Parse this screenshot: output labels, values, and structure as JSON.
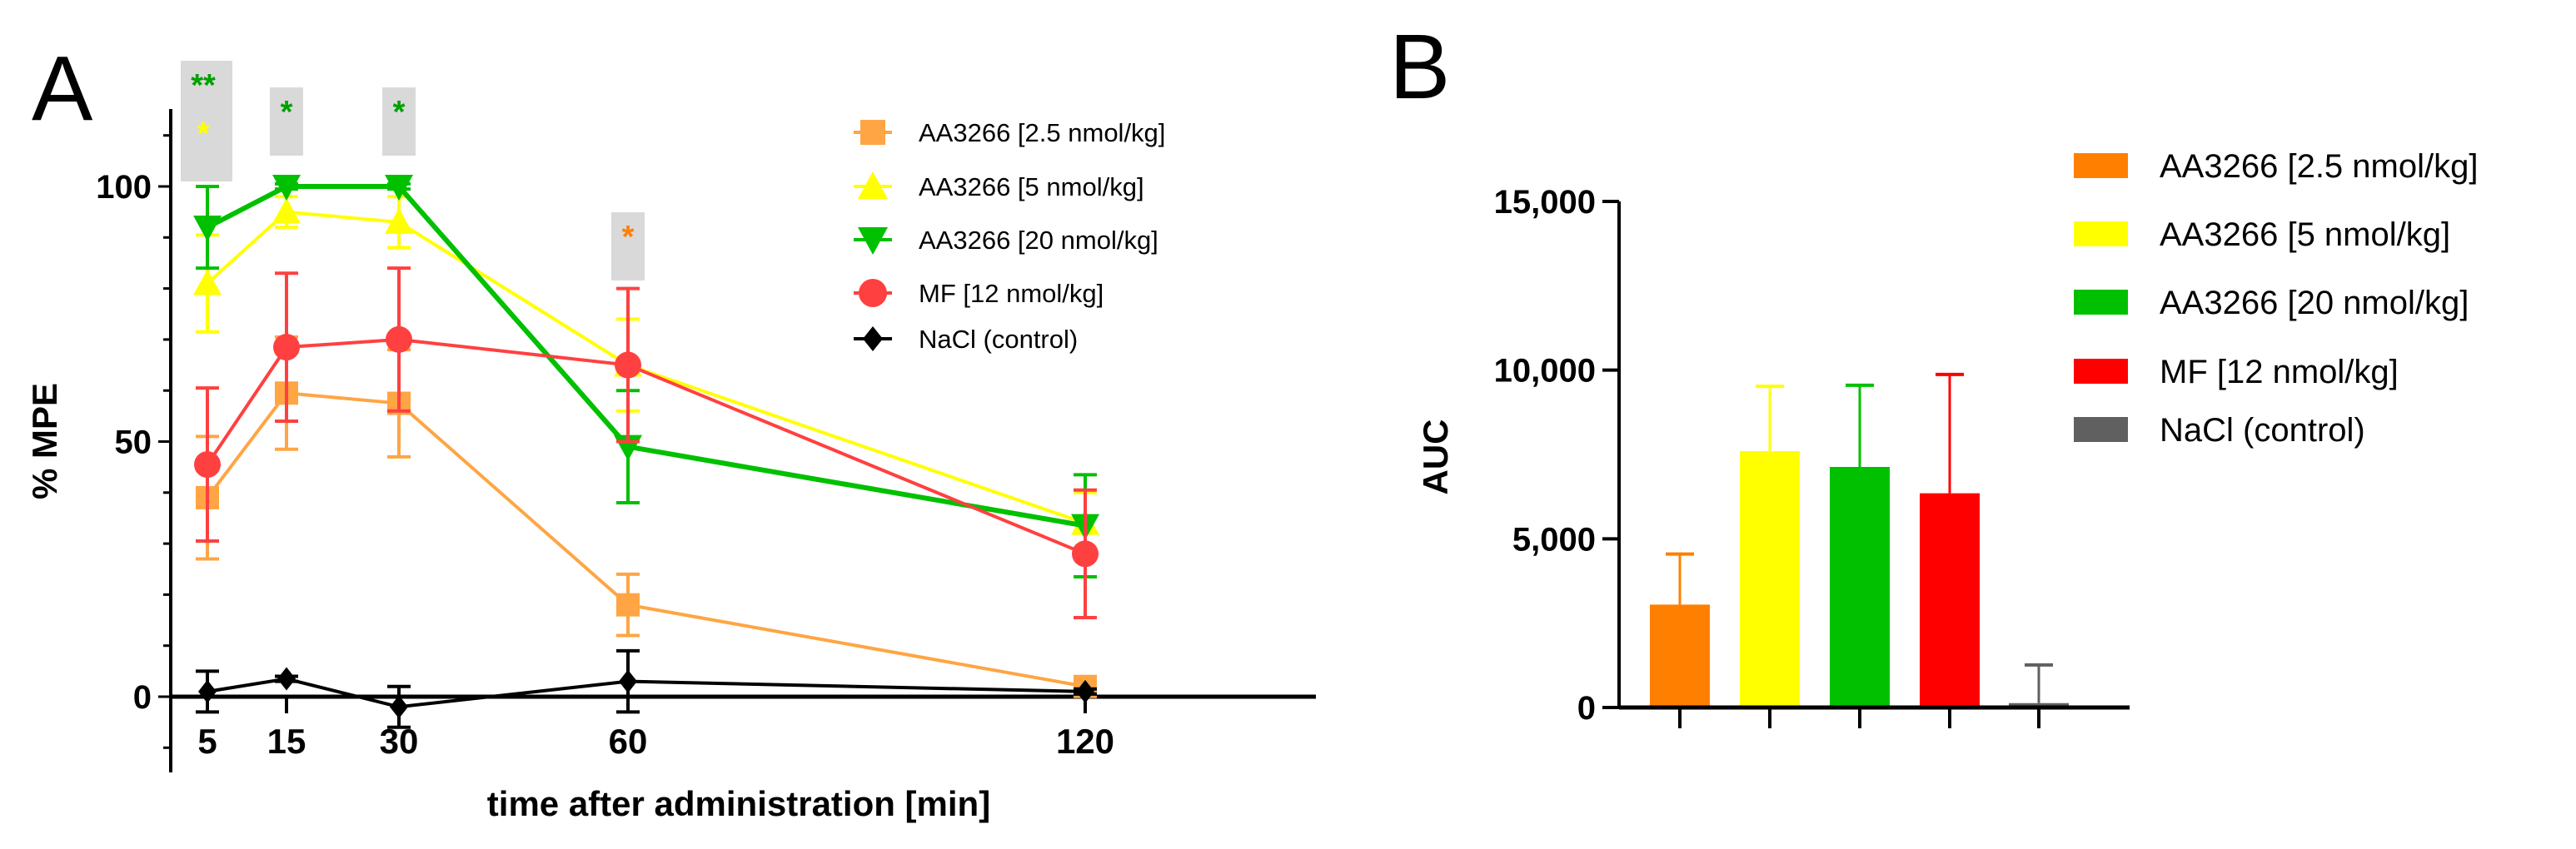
{
  "chart_data": [
    {
      "panel": "A",
      "type": "line",
      "xlabel": "time after administration [min]",
      "ylabel": "% MPE",
      "x": [
        5,
        15,
        30,
        60,
        120
      ],
      "x_tick_labels": [
        "5",
        "15",
        "30",
        "60",
        "120"
      ],
      "y_ticks": [
        0,
        50,
        100
      ],
      "y_tick_labels": [
        "0",
        "50",
        "100"
      ],
      "ylim": [
        -15,
        115
      ],
      "legend_position": "top-right",
      "series": [
        {
          "name": "AA3266 [2.5 nmol/kg]",
          "marker": "square",
          "color": "#FFA544",
          "values": [
            39,
            59.5,
            57.5,
            18,
            2
          ],
          "errors": [
            12,
            11,
            10.5,
            6,
            1
          ]
        },
        {
          "name": "AA3266 [5 nmol/kg]",
          "marker": "triangle-up",
          "color": "#FFFF00",
          "values": [
            81,
            95,
            93,
            65,
            34
          ],
          "errors": [
            9.5,
            3,
            5,
            9,
            6
          ]
        },
        {
          "name": "AA3266 [20 nmol/kg]",
          "marker": "triangle-down",
          "color": "#00C000",
          "values": [
            92,
            100,
            100,
            49,
            33.5
          ],
          "errors": [
            8,
            0.5,
            0.5,
            11,
            10
          ]
        },
        {
          "name": "MF [12 nmol/kg]",
          "marker": "circle",
          "color": "#FF4040",
          "values": [
            45.5,
            68.5,
            70,
            65,
            28
          ],
          "errors": [
            15,
            14.5,
            14,
            15,
            12.5
          ]
        },
        {
          "name": "NaCl (control)",
          "marker": "diamond",
          "color": "#000000",
          "values": [
            1,
            3.5,
            -2,
            3,
            1
          ],
          "errors": [
            4,
            0.5,
            4,
            6,
            0.5
          ]
        }
      ],
      "significance": [
        {
          "x": 5,
          "marks": [
            {
              "text": "**",
              "color": "#00A000"
            },
            {
              "text": "*",
              "color": "#FFFF00"
            }
          ]
        },
        {
          "x": 15,
          "marks": [
            {
              "text": "*",
              "color": "#00A000"
            }
          ]
        },
        {
          "x": 30,
          "marks": [
            {
              "text": "*",
              "color": "#00A000"
            }
          ]
        },
        {
          "x": 60,
          "marks": [
            {
              "text": "*",
              "color": "#FF8000"
            }
          ]
        }
      ]
    },
    {
      "panel": "B",
      "type": "bar",
      "ylabel": "AUC",
      "ylim": [
        0,
        15000
      ],
      "y_ticks": [
        0,
        5000,
        10000,
        15000
      ],
      "y_tick_labels": [
        "0",
        "5,000",
        "10,000",
        "15,000"
      ],
      "legend_position": "top-right",
      "categories": [
        "AA3266 [2.5 nmol/kg]",
        "AA3266 [5 nmol/kg]",
        "AA3266 [20 nmol/kg]",
        "MF [12 nmol/kg]",
        "NaCl (control)"
      ],
      "colors": [
        "#FF8000",
        "#FFFF00",
        "#00C000",
        "#FF0000",
        "#606060"
      ],
      "values": [
        3050,
        7600,
        7130,
        6350,
        130
      ],
      "errors": [
        1500,
        1920,
        2420,
        3520,
        1130
      ]
    }
  ],
  "panel_labels": [
    "A",
    "B"
  ]
}
